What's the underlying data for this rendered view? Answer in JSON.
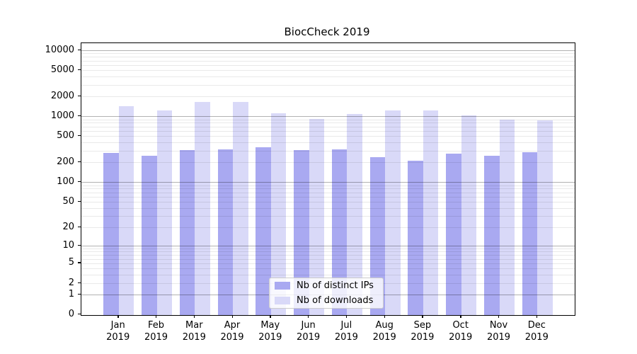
{
  "title": "BiocCheck 2019",
  "chart_data": {
    "type": "bar",
    "title": "BiocCheck 2019",
    "scale": "log1p",
    "categories": [
      "Jan",
      "Feb",
      "Mar",
      "Apr",
      "May",
      "Jun",
      "Jul",
      "Aug",
      "Sep",
      "Oct",
      "Nov",
      "Dec"
    ],
    "category_year": "2019",
    "series": [
      {
        "name": "Nb of distinct IPs",
        "color": "#a9a9f1",
        "values": [
          280,
          255,
          310,
          318,
          338,
          308,
          318,
          242,
          212,
          272,
          253,
          286
        ]
      },
      {
        "name": "Nb of downloads",
        "color": "#d9d9f8",
        "values": [
          1430,
          1230,
          1670,
          1660,
          1110,
          920,
          1080,
          1230,
          1230,
          1040,
          900,
          870
        ]
      }
    ],
    "yticks": [
      0,
      1,
      2,
      5,
      10,
      20,
      50,
      100,
      200,
      500,
      1000,
      2000,
      5000,
      10000
    ],
    "ylim": [
      0,
      12800
    ],
    "xlabel": "",
    "ylabel": "",
    "grid": true,
    "legend_position": "lower center"
  },
  "colors": {
    "bar_dark": "#a9a9f1",
    "bar_light": "#d9d9f8",
    "major_grid": "#b3b3b3",
    "minor_grid": "#e9e9e9",
    "axis": "#000000",
    "legend_border": "#cccccc",
    "background": "#ffffff"
  }
}
